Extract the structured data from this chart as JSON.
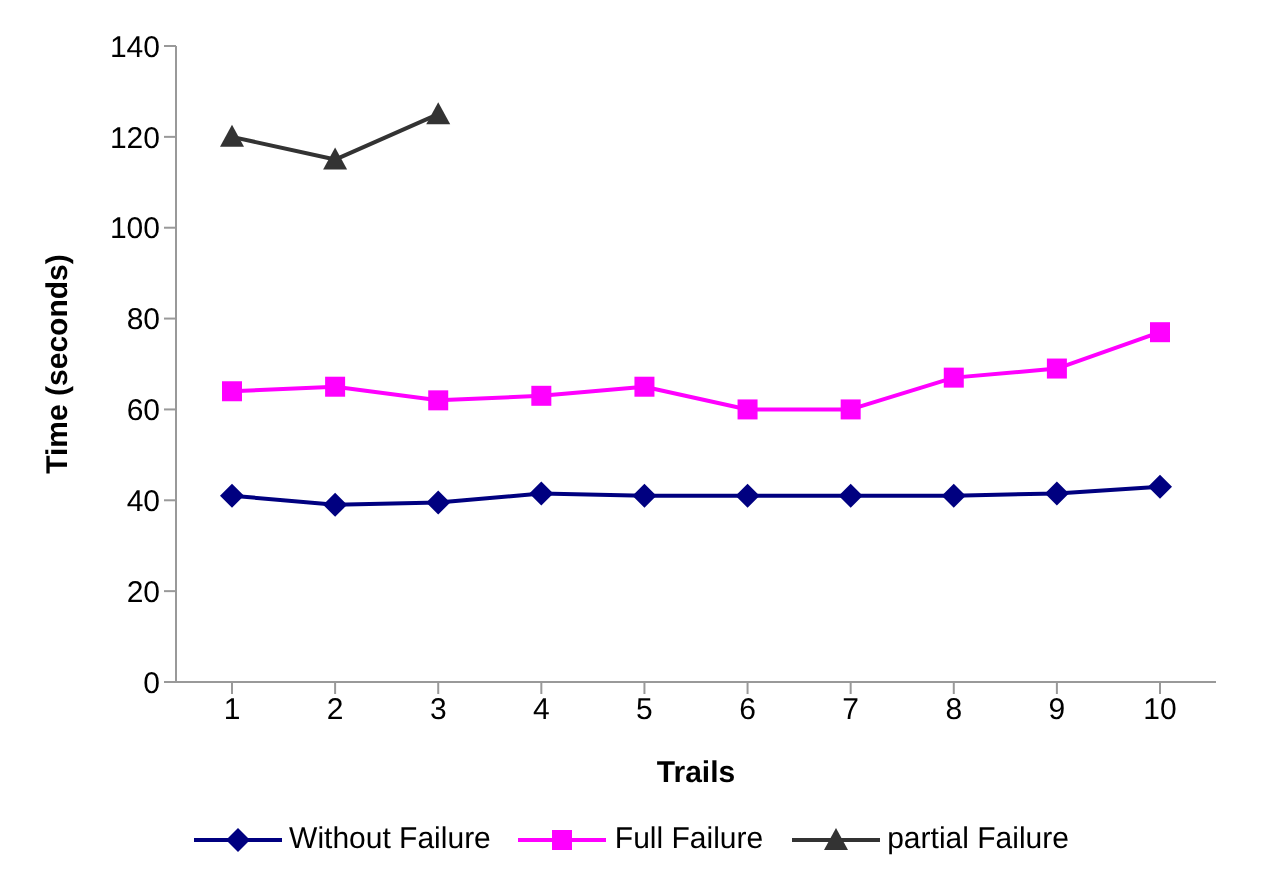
{
  "chart_data": {
    "type": "line",
    "xlabel": "Trails",
    "ylabel": "Time (seconds)",
    "categories": [
      "1",
      "2",
      "3",
      "4",
      "5",
      "6",
      "7",
      "8",
      "9",
      "10"
    ],
    "series": [
      {
        "name": "Without Failure",
        "color": "#000080",
        "marker": "diamond",
        "values": [
          41,
          39,
          39.5,
          41.5,
          41,
          41,
          41,
          41,
          41.5,
          43
        ]
      },
      {
        "name": "Full Failure",
        "color": "#ff00ff",
        "marker": "square",
        "values": [
          64,
          65,
          62,
          63,
          65,
          60,
          60,
          67,
          69,
          77
        ]
      },
      {
        "name": "partial Failure",
        "color": "#333333",
        "marker": "triangle",
        "values": [
          120,
          115,
          125,
          null,
          null,
          null,
          null,
          null,
          null,
          null
        ]
      }
    ],
    "ylim": [
      0,
      140
    ],
    "yticks": [
      0,
      20,
      40,
      60,
      80,
      100,
      120,
      140
    ],
    "grid": false,
    "legend": "bottom"
  }
}
